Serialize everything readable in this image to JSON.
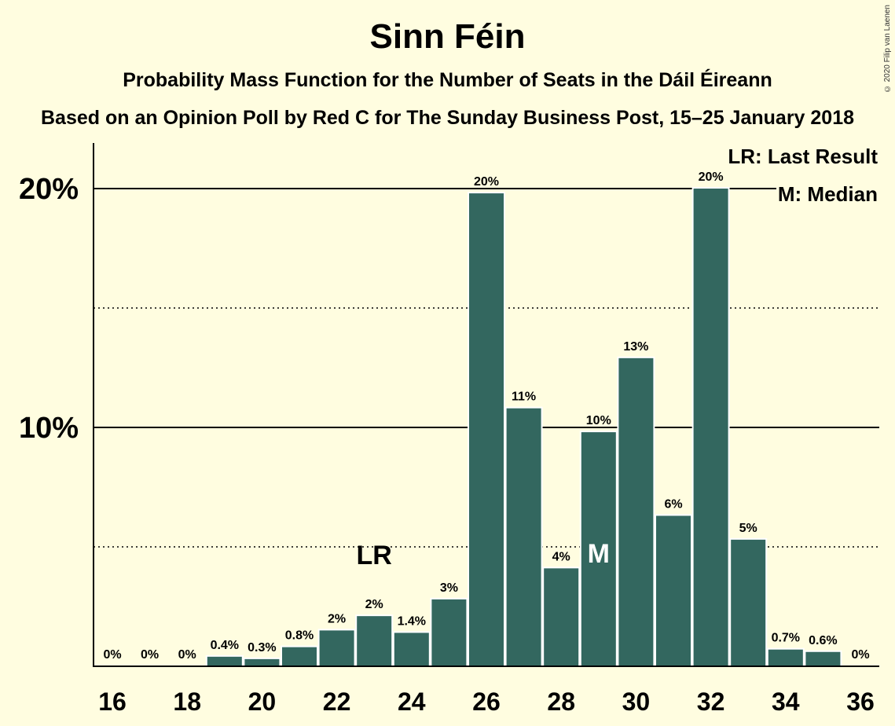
{
  "copyright": "© 2020 Filip van Laenen",
  "legend": {
    "last_result": "LR: Last Result",
    "median": "M: Median"
  },
  "colors": {
    "background": "#fffde0",
    "bar": "#33675f",
    "axis": "#000000"
  },
  "chart_data": {
    "type": "bar",
    "title": "Sinn Féin",
    "subtitle": "Probability Mass Function for the Number of Seats in the Dáil Éireann",
    "subtitle2": "Based on an Opinion Poll by Red C for The Sunday Business Post, 15–25 January 2018",
    "x": [
      16,
      17,
      18,
      19,
      20,
      21,
      22,
      23,
      24,
      25,
      26,
      27,
      28,
      29,
      30,
      31,
      32,
      33,
      34,
      35,
      36
    ],
    "values": [
      0,
      0,
      0,
      0.4,
      0.3,
      0.8,
      1.5,
      2.1,
      1.4,
      2.8,
      19.8,
      10.8,
      4.1,
      9.8,
      12.9,
      6.3,
      20.0,
      5.3,
      0.7,
      0.6,
      0
    ],
    "data_labels": [
      "0%",
      "0%",
      "0%",
      "0.4%",
      "0.3%",
      "0.8%",
      "2%",
      "2%",
      "1.4%",
      "3%",
      "20%",
      "11%",
      "4%",
      "10%",
      "13%",
      "6%",
      "20%",
      "5%",
      "0.7%",
      "0.6%",
      "0%"
    ],
    "xticks": [
      16,
      18,
      20,
      22,
      24,
      26,
      28,
      30,
      32,
      34,
      36
    ],
    "yticks": [
      {
        "value": 10,
        "label": "10%"
      },
      {
        "value": 20,
        "label": "20%"
      }
    ],
    "minor_grid": [
      5,
      15
    ],
    "ylim": [
      0,
      20
    ],
    "last_result": {
      "seats": 23,
      "label": "LR"
    },
    "median": {
      "seats": 29,
      "label": "M"
    }
  }
}
